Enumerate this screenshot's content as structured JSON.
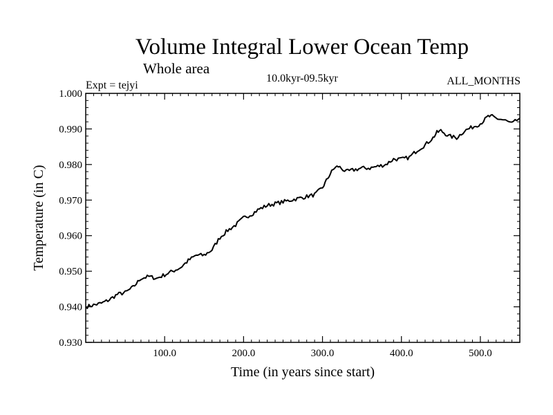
{
  "chart_data": {
    "type": "line",
    "title": "Volume Integral Lower Ocean Temp",
    "subtitle": "Whole area",
    "annotations": {
      "left": "Expt = tejyi",
      "center": "10.0kyr-09.5kyr",
      "right": "ALL_MONTHS"
    },
    "xlabel": "Time (in years since start)",
    "ylabel": "Temperature (in C)",
    "xlim": [
      0,
      550
    ],
    "ylim": [
      0.93,
      1.0
    ],
    "x_ticks": [
      100,
      200,
      300,
      400,
      500
    ],
    "x_tick_labels": [
      "100.0",
      "200.0",
      "300.0",
      "400.0",
      "500.0"
    ],
    "y_ticks": [
      0.93,
      0.94,
      0.95,
      0.96,
      0.97,
      0.98,
      0.99,
      1.0
    ],
    "y_tick_labels": [
      "0.930",
      "0.940",
      "0.950",
      "0.960",
      "0.970",
      "0.980",
      "0.990",
      "1.000"
    ],
    "grid": false,
    "series": [
      {
        "name": "tejyi",
        "color": "#000000",
        "x": [
          0,
          10,
          20,
          30,
          40,
          50,
          60,
          70,
          80,
          90,
          100,
          110,
          120,
          130,
          140,
          150,
          160,
          170,
          180,
          190,
          200,
          210,
          220,
          230,
          240,
          250,
          260,
          270,
          280,
          290,
          300,
          305,
          310,
          315,
          320,
          330,
          340,
          350,
          360,
          370,
          380,
          390,
          400,
          410,
          420,
          430,
          440,
          445,
          450,
          460,
          470,
          480,
          490,
          500,
          510,
          515,
          520,
          530,
          540,
          550
        ],
        "values": [
          0.94,
          0.9405,
          0.941,
          0.942,
          0.9435,
          0.944,
          0.9455,
          0.948,
          0.9485,
          0.948,
          0.949,
          0.95,
          0.951,
          0.953,
          0.9545,
          0.9545,
          0.956,
          0.9595,
          0.9615,
          0.963,
          0.965,
          0.966,
          0.9675,
          0.9685,
          0.969,
          0.9695,
          0.97,
          0.9705,
          0.971,
          0.9715,
          0.9735,
          0.9755,
          0.9775,
          0.979,
          0.9795,
          0.978,
          0.9785,
          0.979,
          0.979,
          0.9795,
          0.98,
          0.9815,
          0.9815,
          0.982,
          0.984,
          0.9855,
          0.9875,
          0.989,
          0.9895,
          0.988,
          0.9875,
          0.9895,
          0.9905,
          0.9915,
          0.9935,
          0.9935,
          0.993,
          0.9925,
          0.9915,
          0.993
        ]
      }
    ]
  }
}
